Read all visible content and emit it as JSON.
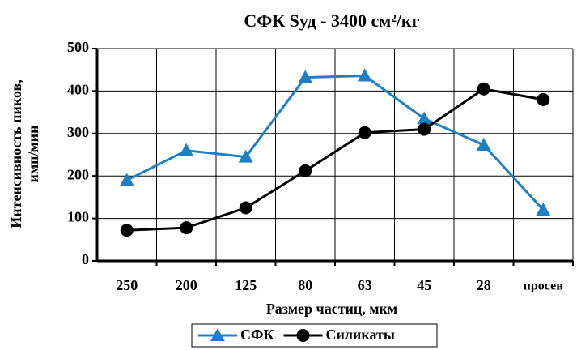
{
  "chart_data": {
    "type": "line",
    "title": "СФК  Sуд - 3400 см²/кг",
    "xlabel": "Размер частиц, мкм",
    "ylabel": [
      "Интенсивность пиков,",
      "имп/мин"
    ],
    "categories": [
      "250",
      "200",
      "125",
      "80",
      "63",
      "45",
      "28",
      "просев"
    ],
    "series": [
      {
        "name": "СФК",
        "color": "#1f7fc4",
        "marker": "triangle",
        "values": [
          190,
          260,
          245,
          432,
          436,
          335,
          273,
          120
        ]
      },
      {
        "name": "Силикаты",
        "color": "#000000",
        "marker": "circle",
        "values": [
          72,
          78,
          125,
          212,
          302,
          310,
          405,
          380
        ]
      }
    ],
    "ylim": [
      0,
      500
    ],
    "yticks": [
      0,
      100,
      200,
      300,
      400,
      500
    ],
    "grid": true,
    "legend": "bottom"
  }
}
